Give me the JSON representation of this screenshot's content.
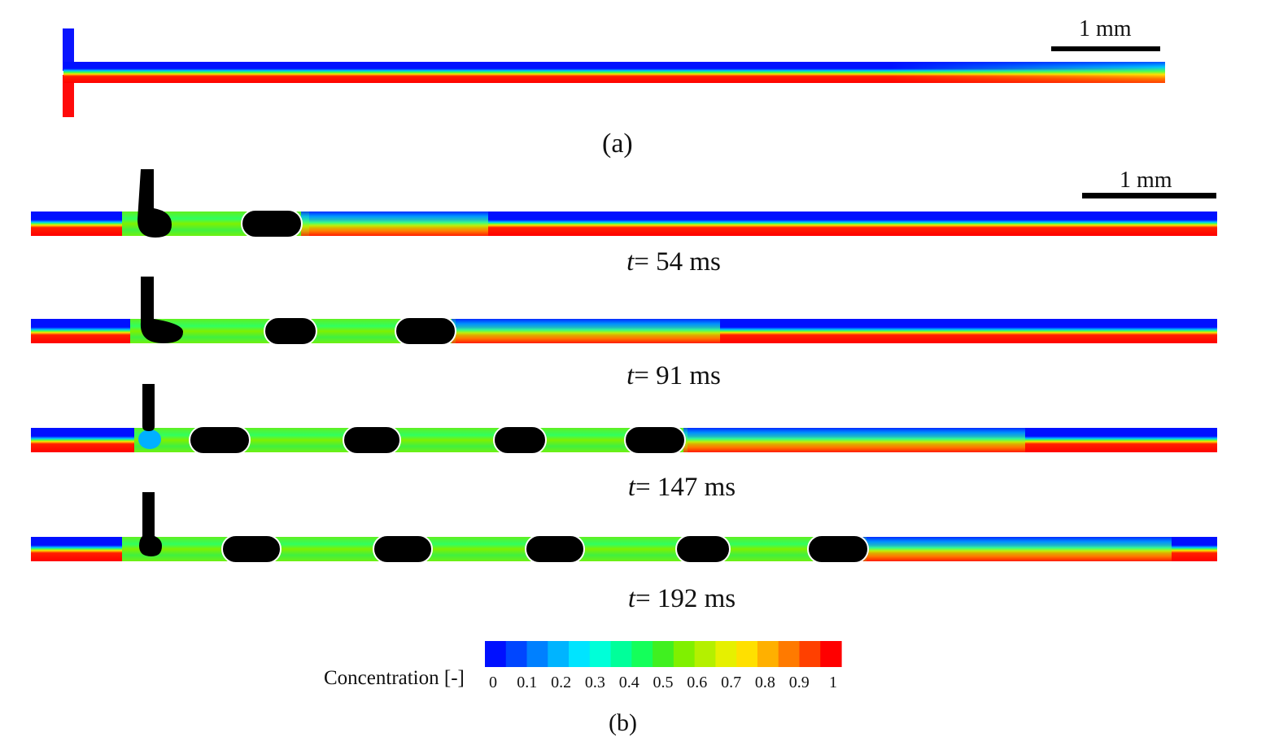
{
  "panel_a": {
    "scale_bar_label": "1 mm",
    "caption": "(a)"
  },
  "panel_b": {
    "scale_bar_label": "1 mm",
    "caption": "(b)",
    "snapshots": [
      {
        "t_label": "t",
        "t_value": "= 54 ms",
        "droplets": 1
      },
      {
        "t_label": "t",
        "t_value": "= 91 ms",
        "droplets": 2
      },
      {
        "t_label": "t",
        "t_value": "= 147 ms",
        "droplets": 4
      },
      {
        "t_label": "t",
        "t_value": "= 192 ms",
        "droplets": 5
      }
    ]
  },
  "colorbar": {
    "title": "Concentration [-]",
    "ticks": [
      "0",
      "0.1",
      "0.2",
      "0.3",
      "0.4",
      "0.5",
      "0.6",
      "0.7",
      "0.8",
      "0.9",
      "1"
    ],
    "colors": [
      "#0010ff",
      "#0046ff",
      "#0080ff",
      "#00b4ff",
      "#00e4ff",
      "#00ffd8",
      "#00ff9a",
      "#14ff5a",
      "#40f020",
      "#80f000",
      "#b4f000",
      "#e6f000",
      "#ffe000",
      "#ffb000",
      "#ff7a00",
      "#ff4000",
      "#ff0000"
    ]
  },
  "colors": {
    "blue": "#0a14ff",
    "red": "#ff0a0a",
    "droplet": "#000000"
  }
}
